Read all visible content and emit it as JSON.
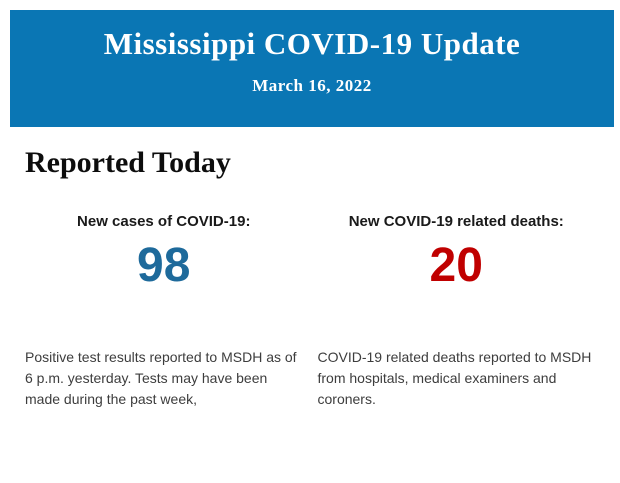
{
  "header": {
    "title": "Mississippi COVID-19 Update",
    "date": "March 16, 2022",
    "background_color": "#0a76b4",
    "text_color": "#ffffff"
  },
  "section": {
    "title": "Reported Today"
  },
  "stats": [
    {
      "label": "New cases of COVID-19:",
      "value": "98",
      "value_color": "#1e6a9b",
      "description": "Positive test results reported to MSDH as of 6 p.m. yesterday. Tests may have been made during the past week,"
    },
    {
      "label": "New COVID-19 related deaths:",
      "value": "20",
      "value_color": "#c00000",
      "description": "COVID-19 related deaths reported to MSDH from hospitals, medical examiners and coroners."
    }
  ]
}
